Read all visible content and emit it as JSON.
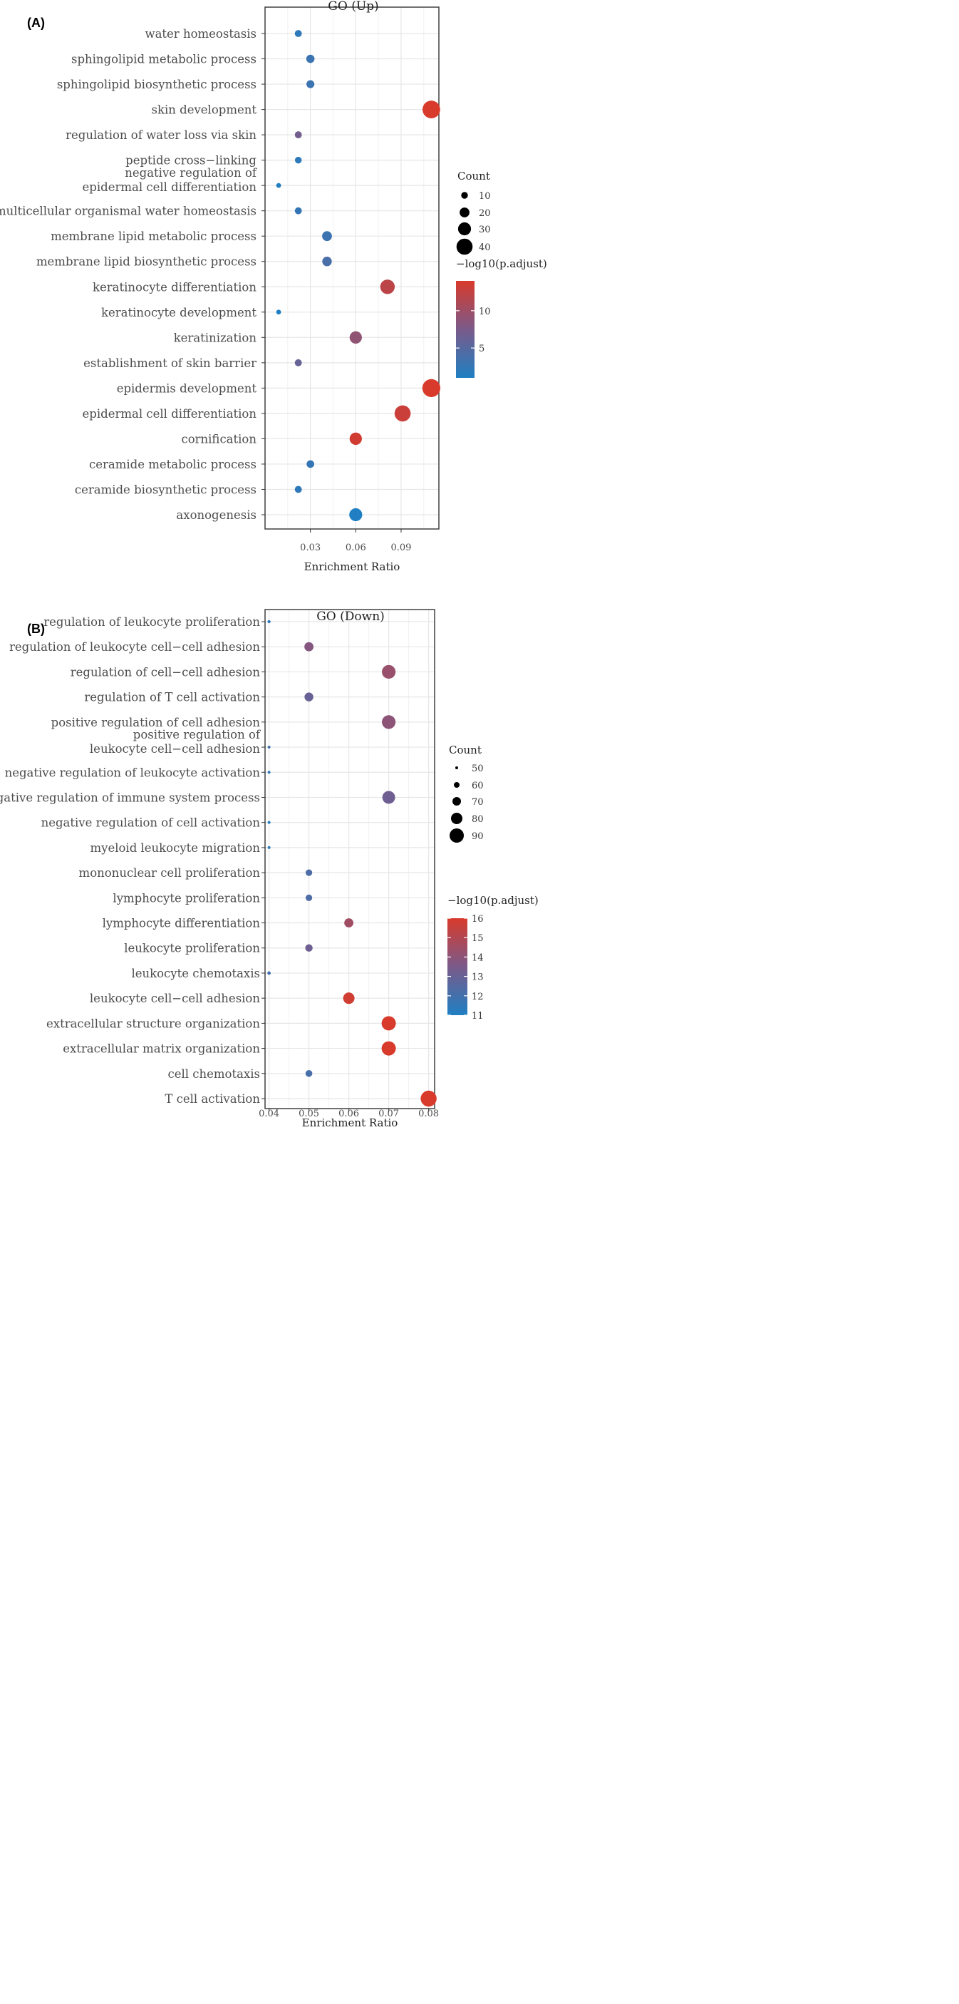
{
  "chart_data": [
    {
      "type": "scatter",
      "panel_label": "(A)",
      "title": "GO (Up)",
      "xlabel": "Enrichment Ratio",
      "ylabel": "",
      "xlim": [
        0.0,
        0.115
      ],
      "xticks": [
        0.03,
        0.06,
        0.09
      ],
      "xtick_labels": [
        "0.03",
        "0.06",
        "0.09"
      ],
      "grid": true,
      "legend_position": "right",
      "size_legend": {
        "title": "Count",
        "values": [
          10,
          20,
          30,
          40
        ]
      },
      "color_legend": {
        "title": "−log10(p.adjust)",
        "ticks": [
          5,
          10
        ],
        "range": [
          1,
          14
        ],
        "low_color": "#1f7fc2",
        "mid_color": "#7a5a8a",
        "high_color": "#d83a2b"
      },
      "points": [
        {
          "label": "water homeostasis",
          "x": 0.022,
          "count": 11,
          "color_value": 2
        },
        {
          "label": "sphingolipid metabolic process",
          "x": 0.03,
          "count": 15,
          "color_value": 3
        },
        {
          "label": "sphingolipid biosynthetic process",
          "x": 0.03,
          "count": 14,
          "color_value": 3
        },
        {
          "label": "skin development",
          "x": 0.11,
          "count": 45,
          "color_value": 14
        },
        {
          "label": "regulation of water loss via skin",
          "x": 0.022,
          "count": 11,
          "color_value": 7
        },
        {
          "label": "peptide cross−linking",
          "x": 0.022,
          "count": 10,
          "color_value": 2
        },
        {
          "label": "negative regulation of\nepidermal cell differentiation",
          "x": 0.009,
          "count": 4,
          "color_value": 1
        },
        {
          "label": "multicellular organismal water homeostasis",
          "x": 0.022,
          "count": 11,
          "color_value": 2.5
        },
        {
          "label": "membrane lipid metabolic process",
          "x": 0.041,
          "count": 20,
          "color_value": 3
        },
        {
          "label": "membrane lipid biosynthetic process",
          "x": 0.041,
          "count": 19,
          "color_value": 4
        },
        {
          "label": "keratinocyte differentiation",
          "x": 0.081,
          "count": 35,
          "color_value": 12
        },
        {
          "label": "keratinocyte development",
          "x": 0.009,
          "count": 4,
          "color_value": 1
        },
        {
          "label": "keratinization",
          "x": 0.06,
          "count": 28,
          "color_value": 9
        },
        {
          "label": "establishment of skin barrier",
          "x": 0.022,
          "count": 11,
          "color_value": 6
        },
        {
          "label": "epidermis development",
          "x": 0.11,
          "count": 46,
          "color_value": 14
        },
        {
          "label": "epidermal cell differentiation",
          "x": 0.091,
          "count": 40,
          "color_value": 13
        },
        {
          "label": "cornification",
          "x": 0.06,
          "count": 28,
          "color_value": 13.5
        },
        {
          "label": "ceramide metabolic process",
          "x": 0.03,
          "count": 13,
          "color_value": 2.5
        },
        {
          "label": "ceramide biosynthetic process",
          "x": 0.022,
          "count": 11,
          "color_value": 2
        },
        {
          "label": "axonogenesis",
          "x": 0.06,
          "count": 30,
          "color_value": 1
        }
      ]
    },
    {
      "type": "scatter",
      "panel_label": "(B)",
      "title": "GO (Down)",
      "xlabel": "Enrichment Ratio",
      "ylabel": "",
      "xlim": [
        0.039,
        0.0815
      ],
      "xticks": [
        0.04,
        0.05,
        0.06,
        0.07,
        0.08
      ],
      "xtick_labels": [
        "0.04",
        "0.05",
        "0.06",
        "0.07",
        "0.08"
      ],
      "grid": true,
      "legend_position": "right",
      "size_legend": {
        "title": "Count",
        "values": [
          50,
          60,
          70,
          80,
          90
        ]
      },
      "color_legend": {
        "title": "−log10(p.adjust)",
        "ticks": [
          11,
          12,
          13,
          14,
          15,
          16
        ],
        "range": [
          11,
          16
        ],
        "low_color": "#1f7fc2",
        "mid_color": "#7a5a8a",
        "high_color": "#d83a2b"
      },
      "points": [
        {
          "label": "regulation of leukocyte proliferation",
          "x": 0.04,
          "count": 51,
          "color_value": 11.5
        },
        {
          "label": "regulation of leukocyte cell−cell adhesion",
          "x": 0.05,
          "count": 72,
          "color_value": 13.8
        },
        {
          "label": "regulation of cell−cell adhesion",
          "x": 0.07,
          "count": 88,
          "color_value": 14.3
        },
        {
          "label": "regulation of T cell activation",
          "x": 0.05,
          "count": 71,
          "color_value": 13.0
        },
        {
          "label": "positive regulation of cell adhesion",
          "x": 0.07,
          "count": 88,
          "color_value": 14.0
        },
        {
          "label": "positive regulation of\nleukocyte cell−cell adhesion",
          "x": 0.04,
          "count": 50,
          "color_value": 12.0
        },
        {
          "label": "negative regulation of leukocyte activation",
          "x": 0.04,
          "count": 44,
          "color_value": 11.5
        },
        {
          "label": "negative regulation of immune system process",
          "x": 0.07,
          "count": 85,
          "color_value": 13.2
        },
        {
          "label": "negative regulation of cell activation",
          "x": 0.04,
          "count": 48,
          "color_value": 11.2
        },
        {
          "label": "myeloid leukocyte migration",
          "x": 0.04,
          "count": 49,
          "color_value": 11.3
        },
        {
          "label": "mononuclear cell proliferation",
          "x": 0.05,
          "count": 63,
          "color_value": 12.3
        },
        {
          "label": "lymphocyte proliferation",
          "x": 0.05,
          "count": 63,
          "color_value": 12.3
        },
        {
          "label": "lymphocyte differentiation",
          "x": 0.06,
          "count": 72,
          "color_value": 14.5
        },
        {
          "label": "leukocyte proliferation",
          "x": 0.05,
          "count": 66,
          "color_value": 13.2
        },
        {
          "label": "leukocyte chemotaxis",
          "x": 0.04,
          "count": 52,
          "color_value": 12.0
        },
        {
          "label": "leukocyte cell−cell adhesion",
          "x": 0.06,
          "count": 80,
          "color_value": 15.8
        },
        {
          "label": "extracellular structure organization",
          "x": 0.07,
          "count": 90,
          "color_value": 16
        },
        {
          "label": "extracellular matrix organization",
          "x": 0.07,
          "count": 90,
          "color_value": 16
        },
        {
          "label": "cell chemotaxis",
          "x": 0.05,
          "count": 64,
          "color_value": 12.1
        },
        {
          "label": "T cell activation",
          "x": 0.08,
          "count": 96,
          "color_value": 16
        }
      ]
    }
  ]
}
